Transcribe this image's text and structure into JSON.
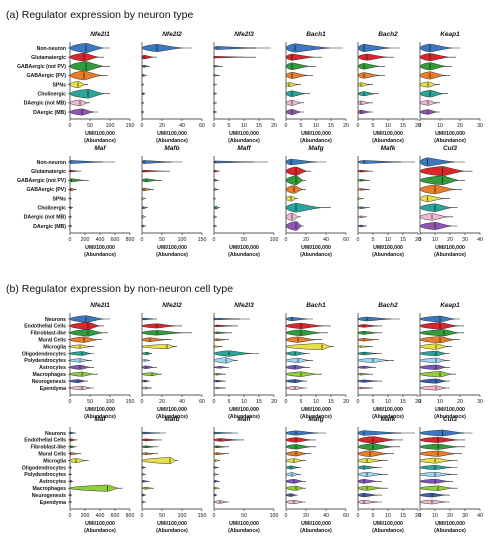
{
  "chart_data": [
    {
      "type": "violin",
      "title": "(a) Regulator expression by neuron type",
      "categories": [
        "Non-neuron",
        "Glutamatergic",
        "GABAergic (not PV)",
        "GABAergic (PV)",
        "SPNs",
        "Cholinergic",
        "DAergic (not MB)",
        "DAergic (MB)"
      ],
      "colors": [
        "#3a78c2",
        "#d9262b",
        "#2f9d3a",
        "#e87d2a",
        "#e8e04a",
        "#2aa59a",
        "#f0b8d2",
        "#8e57b5"
      ],
      "xlabel": "UMI/100,000\n(Abundance)",
      "panels": [
        {
          "gene": "Nfe2l1",
          "xlim": [
            0,
            150
          ],
          "ticks": [
            0,
            50,
            100,
            150
          ],
          "medians": [
            40,
            35,
            40,
            35,
            20,
            45,
            25,
            30
          ],
          "maxes": [
            100,
            85,
            100,
            95,
            45,
            100,
            50,
            70
          ],
          "widths": [
            0.9,
            0.75,
            0.9,
            0.85,
            0.6,
            0.85,
            0.55,
            0.6
          ]
        },
        {
          "gene": "Nfe2l2",
          "xlim": [
            0,
            60
          ],
          "ticks": [
            0,
            20,
            40,
            60
          ],
          "medians": [
            15,
            2,
            2,
            1,
            0,
            1,
            0,
            0
          ],
          "maxes": [
            50,
            15,
            8,
            5,
            2,
            3,
            2,
            2
          ],
          "widths": [
            0.7,
            0.35,
            0.2,
            0.2,
            0.1,
            0.1,
            0.1,
            0.1
          ]
        },
        {
          "gene": "Nfe2l3",
          "xlim": [
            0,
            20
          ],
          "ticks": [
            0,
            5,
            10,
            15,
            20
          ],
          "medians": [
            1,
            0,
            0,
            0,
            0,
            0,
            0,
            0
          ],
          "maxes": [
            19,
            14,
            3,
            2,
            1,
            1,
            1,
            1
          ],
          "widths": [
            0.3,
            0.1,
            0.1,
            0.1,
            0.1,
            0.1,
            0.1,
            0.1
          ]
        },
        {
          "gene": "Bach1",
          "xlim": [
            0,
            20
          ],
          "ticks": [
            0,
            5,
            10,
            15,
            20
          ],
          "medians": [
            3,
            2,
            2,
            2,
            1,
            2,
            2,
            2
          ],
          "maxes": [
            19,
            12,
            10,
            9,
            5,
            8,
            6,
            6
          ],
          "widths": [
            0.8,
            0.6,
            0.65,
            0.6,
            0.4,
            0.55,
            0.5,
            0.5
          ]
        },
        {
          "gene": "Bach2",
          "xlim": [
            0,
            20
          ],
          "ticks": [
            0,
            5,
            10,
            15,
            20
          ],
          "medians": [
            2,
            3,
            2,
            2,
            1,
            2,
            1,
            1
          ],
          "maxes": [
            14,
            12,
            9,
            9,
            5,
            7,
            5,
            5
          ],
          "widths": [
            0.7,
            0.6,
            0.55,
            0.55,
            0.35,
            0.4,
            0.35,
            0.35
          ]
        },
        {
          "gene": "Keap1",
          "xlim": [
            0,
            30
          ],
          "ticks": [
            0,
            10,
            20,
            30
          ],
          "medians": [
            5,
            5,
            5,
            5,
            4,
            5,
            4,
            4
          ],
          "maxes": [
            20,
            18,
            16,
            15,
            10,
            14,
            10,
            10
          ],
          "widths": [
            0.75,
            0.7,
            0.7,
            0.7,
            0.5,
            0.65,
            0.45,
            0.45
          ]
        },
        {
          "gene": "Maf",
          "xlim": [
            0,
            800
          ],
          "ticks": [
            0,
            200,
            400,
            600,
            800
          ],
          "medians": [
            5,
            5,
            20,
            10,
            1,
            5,
            2,
            2
          ],
          "maxes": [
            600,
            150,
            250,
            90,
            20,
            40,
            20,
            20
          ],
          "widths": [
            0.3,
            0.15,
            0.3,
            0.25,
            0.1,
            0.15,
            0.1,
            0.1
          ]
        },
        {
          "gene": "Mafb",
          "xlim": [
            0,
            150
          ],
          "ticks": [
            0,
            50,
            100,
            150
          ],
          "medians": [
            5,
            5,
            10,
            5,
            1,
            3,
            1,
            1
          ],
          "maxes": [
            100,
            70,
            50,
            30,
            10,
            15,
            10,
            10
          ],
          "widths": [
            0.3,
            0.15,
            0.3,
            0.25,
            0.1,
            0.2,
            0.25,
            0.1
          ]
        },
        {
          "gene": "Maff",
          "xlim": [
            0,
            100
          ],
          "ticks": [
            0,
            50,
            100
          ],
          "medians": [
            2,
            1,
            1,
            1,
            0,
            3,
            1,
            0
          ],
          "maxes": [
            90,
            10,
            8,
            8,
            3,
            10,
            5,
            5
          ],
          "widths": [
            0.2,
            0.1,
            0.1,
            0.1,
            0.1,
            0.25,
            0.1,
            0.1
          ]
        },
        {
          "gene": "Mafg",
          "xlim": [
            0,
            60
          ],
          "ticks": [
            0,
            20,
            40,
            60
          ],
          "medians": [
            5,
            10,
            10,
            8,
            5,
            10,
            6,
            10
          ],
          "maxes": [
            40,
            25,
            20,
            20,
            12,
            45,
            15,
            18
          ],
          "widths": [
            0.55,
            0.8,
            0.85,
            0.75,
            0.5,
            0.85,
            0.7,
            0.85
          ]
        },
        {
          "gene": "Mafk",
          "xlim": [
            0,
            20
          ],
          "ticks": [
            0,
            5,
            10,
            15,
            20
          ],
          "medians": [
            2,
            1,
            1,
            1,
            0,
            1,
            1,
            1
          ],
          "maxes": [
            19,
            5,
            4,
            4,
            2,
            4,
            3,
            3
          ],
          "widths": [
            0.3,
            0.1,
            0.1,
            0.1,
            0.1,
            0.1,
            0.1,
            0.1
          ]
        },
        {
          "gene": "Cul3",
          "xlim": [
            0,
            40
          ],
          "ticks": [
            0,
            10,
            20,
            30,
            40
          ],
          "medians": [
            5,
            15,
            15,
            10,
            5,
            10,
            8,
            10
          ],
          "maxes": [
            30,
            35,
            30,
            28,
            20,
            25,
            22,
            25
          ],
          "widths": [
            0.8,
            0.9,
            0.85,
            0.85,
            0.6,
            0.75,
            0.65,
            0.7
          ]
        }
      ]
    },
    {
      "type": "violin",
      "title": "(b) Regulator expression by non-neuron cell type",
      "categories": [
        "Neurons",
        "Endothelial Cells",
        "Fibroblast-like",
        "Mural Cells",
        "Microglia",
        "Oligodendrocytes",
        "Polydendrocytes",
        "Astrocytes",
        "Macrophages",
        "Neurogenesis",
        "Ependyma"
      ],
      "colors": [
        "#3a78c2",
        "#d9262b",
        "#2f9d3a",
        "#e87d2a",
        "#e8e04a",
        "#2aa59a",
        "#9ed7f0",
        "#7b58b8",
        "#8fd03a",
        "#3a5fb0",
        "#f0b8d2"
      ],
      "xlabel": "UMI/100,000\n(Abundance)",
      "panels": [
        {
          "gene": "Nfe2l1",
          "xlim": [
            0,
            150
          ],
          "ticks": [
            0,
            50,
            100,
            150
          ],
          "medians": [
            40,
            45,
            45,
            35,
            25,
            30,
            25,
            25,
            30,
            20,
            30
          ],
          "maxes": [
            100,
            85,
            95,
            80,
            60,
            60,
            55,
            60,
            70,
            45,
            60
          ],
          "widths": [
            0.85,
            0.9,
            0.85,
            0.7,
            0.45,
            0.5,
            0.45,
            0.55,
            0.55,
            0.4,
            0.45
          ]
        },
        {
          "gene": "Nfe2l2",
          "xlim": [
            0,
            60
          ],
          "ticks": [
            0,
            20,
            40,
            60
          ],
          "medians": [
            2,
            15,
            15,
            8,
            25,
            5,
            3,
            4,
            10,
            3,
            4
          ],
          "maxes": [
            15,
            40,
            50,
            30,
            35,
            10,
            8,
            15,
            20,
            8,
            10
          ],
          "widths": [
            0.2,
            0.55,
            0.6,
            0.5,
            0.55,
            0.3,
            0.2,
            0.35,
            0.4,
            0.2,
            0.25
          ]
        },
        {
          "gene": "Nfe2l3",
          "xlim": [
            0,
            20
          ],
          "ticks": [
            0,
            5,
            10,
            15,
            20
          ],
          "medians": [
            0,
            1,
            1,
            1,
            0,
            5,
            4,
            2,
            1,
            1,
            1
          ],
          "maxes": [
            12,
            8,
            6,
            5,
            3,
            15,
            8,
            5,
            4,
            4,
            4
          ],
          "widths": [
            0.1,
            0.15,
            0.15,
            0.15,
            0.1,
            0.7,
            0.7,
            0.2,
            0.15,
            0.1,
            0.1
          ]
        },
        {
          "gene": "Bach1",
          "xlim": [
            0,
            20
          ],
          "ticks": [
            0,
            5,
            10,
            15,
            20
          ],
          "medians": [
            2,
            5,
            5,
            4,
            12,
            3,
            4,
            3,
            5,
            3,
            3
          ],
          "maxes": [
            9,
            15,
            14,
            12,
            16,
            8,
            9,
            8,
            12,
            7,
            7
          ],
          "widths": [
            0.45,
            0.7,
            0.75,
            0.7,
            0.8,
            0.5,
            0.55,
            0.5,
            0.6,
            0.4,
            0.4
          ]
        },
        {
          "gene": "Bach2",
          "xlim": [
            0,
            20
          ],
          "ticks": [
            0,
            5,
            10,
            15,
            20
          ],
          "medians": [
            3,
            2,
            2,
            2,
            1,
            2,
            5,
            2,
            1,
            2,
            1
          ],
          "maxes": [
            14,
            8,
            8,
            7,
            5,
            8,
            12,
            6,
            5,
            8,
            5
          ],
          "widths": [
            0.5,
            0.35,
            0.4,
            0.35,
            0.2,
            0.35,
            0.55,
            0.3,
            0.2,
            0.3,
            0.2
          ]
        },
        {
          "gene": "Keap1",
          "xlim": [
            0,
            30
          ],
          "ticks": [
            0,
            10,
            20,
            30
          ],
          "medians": [
            10,
            10,
            12,
            10,
            8,
            8,
            8,
            8,
            10,
            8,
            8
          ],
          "maxes": [
            20,
            22,
            22,
            20,
            16,
            15,
            15,
            15,
            18,
            15,
            15
          ],
          "widths": [
            0.75,
            0.85,
            0.8,
            0.8,
            0.7,
            0.6,
            0.6,
            0.6,
            0.7,
            0.55,
            0.55
          ]
        },
        {
          "gene": "Maf",
          "xlim": [
            0,
            800
          ],
          "ticks": [
            0,
            200,
            400,
            600,
            800
          ],
          "medians": [
            5,
            10,
            10,
            10,
            80,
            2,
            2,
            5,
            500,
            2,
            2
          ],
          "maxes": [
            80,
            100,
            90,
            150,
            250,
            20,
            20,
            40,
            700,
            20,
            20
          ],
          "widths": [
            0.15,
            0.3,
            0.25,
            0.3,
            0.55,
            0.1,
            0.1,
            0.15,
            0.8,
            0.1,
            0.1
          ]
        },
        {
          "gene": "Mafb",
          "xlim": [
            0,
            150
          ],
          "ticks": [
            0,
            50,
            100,
            150
          ],
          "medians": [
            5,
            10,
            10,
            10,
            70,
            2,
            2,
            3,
            10,
            2,
            2
          ],
          "maxes": [
            60,
            50,
            40,
            40,
            90,
            10,
            10,
            20,
            30,
            10,
            10
          ],
          "widths": [
            0.2,
            0.25,
            0.25,
            0.25,
            0.8,
            0.1,
            0.1,
            0.15,
            0.25,
            0.1,
            0.1
          ]
        },
        {
          "gene": "Maff",
          "xlim": [
            0,
            100
          ],
          "ticks": [
            0,
            50,
            100
          ],
          "medians": [
            1,
            10,
            5,
            5,
            2,
            1,
            1,
            2,
            1,
            1,
            10
          ],
          "maxes": [
            40,
            50,
            25,
            25,
            10,
            8,
            8,
            10,
            10,
            5,
            25
          ],
          "widths": [
            0.1,
            0.35,
            0.25,
            0.25,
            0.15,
            0.1,
            0.1,
            0.15,
            0.1,
            0.1,
            0.35
          ]
        },
        {
          "gene": "Mafg",
          "xlim": [
            0,
            60
          ],
          "ticks": [
            0,
            20,
            40,
            60
          ],
          "medians": [
            10,
            10,
            10,
            10,
            8,
            5,
            6,
            8,
            10,
            5,
            8
          ],
          "maxes": [
            40,
            30,
            30,
            25,
            20,
            15,
            15,
            20,
            20,
            12,
            20
          ],
          "widths": [
            0.55,
            0.6,
            0.6,
            0.6,
            0.5,
            0.4,
            0.45,
            0.5,
            0.55,
            0.35,
            0.45
          ]
        },
        {
          "gene": "Mafk",
          "xlim": [
            0,
            20
          ],
          "ticks": [
            0,
            5,
            10,
            15,
            20
          ],
          "medians": [
            2,
            5,
            5,
            4,
            3,
            2,
            3,
            2,
            3,
            2,
            2
          ],
          "maxes": [
            19,
            15,
            14,
            12,
            10,
            8,
            10,
            8,
            10,
            8,
            8
          ],
          "widths": [
            0.6,
            0.85,
            0.8,
            0.75,
            0.55,
            0.45,
            0.55,
            0.5,
            0.55,
            0.45,
            0.45
          ]
        },
        {
          "gene": "Cul3",
          "xlim": [
            0,
            40
          ],
          "ticks": [
            0,
            10,
            20,
            30,
            40
          ],
          "medians": [
            15,
            12,
            12,
            12,
            10,
            10,
            10,
            10,
            12,
            8,
            8
          ],
          "maxes": [
            35,
            30,
            30,
            28,
            25,
            25,
            25,
            22,
            25,
            20,
            20
          ],
          "widths": [
            0.75,
            0.7,
            0.7,
            0.7,
            0.65,
            0.55,
            0.55,
            0.55,
            0.6,
            0.5,
            0.5
          ]
        }
      ]
    }
  ]
}
